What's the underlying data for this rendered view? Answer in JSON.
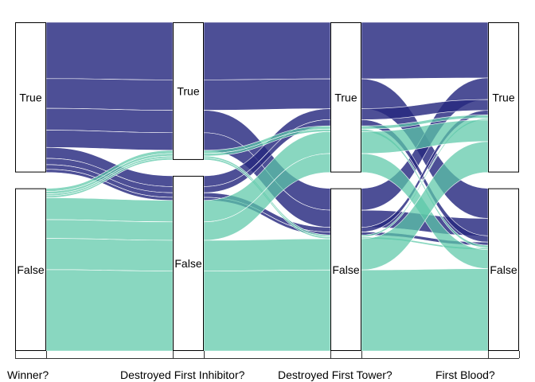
{
  "chart_data": {
    "type": "alluvial",
    "title": "",
    "axes": [
      "Winner?",
      "Destroyed First Inhibitor?",
      "Destroyed First Tower?",
      "First Blood?"
    ],
    "strata": [
      "True",
      "False"
    ],
    "stratum_share": [
      {
        "True": 0.48,
        "False": 0.52
      },
      {
        "True": 0.44,
        "False": 0.56
      },
      {
        "True": 0.48,
        "False": 0.52
      },
      {
        "True": 0.48,
        "False": 0.52
      }
    ],
    "flows": [
      {
        "path": [
          "True",
          "True",
          "True",
          "True"
        ],
        "share": 0.18,
        "fill_by": "True"
      },
      {
        "path": [
          "True",
          "True",
          "True",
          "False"
        ],
        "share": 0.095,
        "fill_by": "True"
      },
      {
        "path": [
          "True",
          "True",
          "False",
          "True"
        ],
        "share": 0.07,
        "fill_by": "True"
      },
      {
        "path": [
          "True",
          "True",
          "False",
          "False"
        ],
        "share": 0.055,
        "fill_by": "True"
      },
      {
        "path": [
          "True",
          "False",
          "True",
          "True"
        ],
        "share": 0.035,
        "fill_by": "True"
      },
      {
        "path": [
          "True",
          "False",
          "True",
          "False"
        ],
        "share": 0.02,
        "fill_by": "True"
      },
      {
        "path": [
          "True",
          "False",
          "False",
          "True"
        ],
        "share": 0.015,
        "fill_by": "True"
      },
      {
        "path": [
          "True",
          "False",
          "False",
          "False"
        ],
        "share": 0.01,
        "fill_by": "True"
      },
      {
        "path": [
          "False",
          "True",
          "True",
          "True"
        ],
        "share": 0.01,
        "fill_by": "False"
      },
      {
        "path": [
          "False",
          "True",
          "True",
          "False"
        ],
        "share": 0.008,
        "fill_by": "False"
      },
      {
        "path": [
          "False",
          "True",
          "False",
          "True"
        ],
        "share": 0.006,
        "fill_by": "False"
      },
      {
        "path": [
          "False",
          "True",
          "False",
          "False"
        ],
        "share": 0.006,
        "fill_by": "False"
      },
      {
        "path": [
          "False",
          "False",
          "True",
          "True"
        ],
        "share": 0.07,
        "fill_by": "False"
      },
      {
        "path": [
          "False",
          "False",
          "True",
          "False"
        ],
        "share": 0.06,
        "fill_by": "False"
      },
      {
        "path": [
          "False",
          "False",
          "False",
          "True"
        ],
        "share": 0.1,
        "fill_by": "False"
      },
      {
        "path": [
          "False",
          "False",
          "False",
          "False"
        ],
        "share": 0.26,
        "fill_by": "False"
      }
    ],
    "colors": {
      "True": "#26287F",
      "False": "#5CC8A8"
    },
    "grid": false,
    "legend": "none"
  }
}
